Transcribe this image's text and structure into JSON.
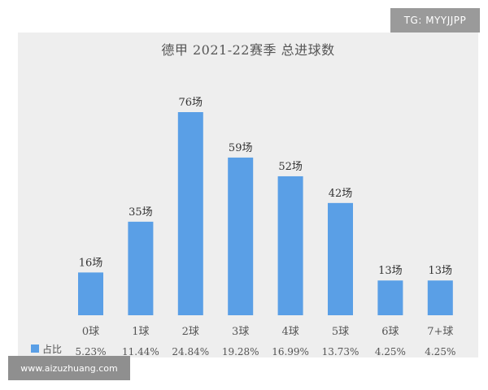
{
  "badge": {
    "text": "TG: MYYJJPP"
  },
  "watermark": {
    "text": "www.aizuzhuang.com"
  },
  "chart_data": {
    "type": "bar",
    "title": "德甲 2021-22赛季 总进球数",
    "categories": [
      "0球",
      "1球",
      "2球",
      "3球",
      "4球",
      "5球",
      "6球",
      "7+球"
    ],
    "values": [
      16,
      35,
      76,
      59,
      52,
      42,
      13,
      13
    ],
    "value_labels": [
      "16场",
      "35场",
      "76场",
      "59场",
      "52场",
      "42场",
      "13场",
      "13场"
    ],
    "percent_label": "占比",
    "percentages": [
      "5.23%",
      "11.44%",
      "24.84%",
      "19.28%",
      "16.99%",
      "13.73%",
      "4.25%",
      "4.25%"
    ],
    "bar_color": "#5a9fe6",
    "ylim": [
      0,
      80
    ],
    "grid": false,
    "legend_position": "bottom-left"
  }
}
